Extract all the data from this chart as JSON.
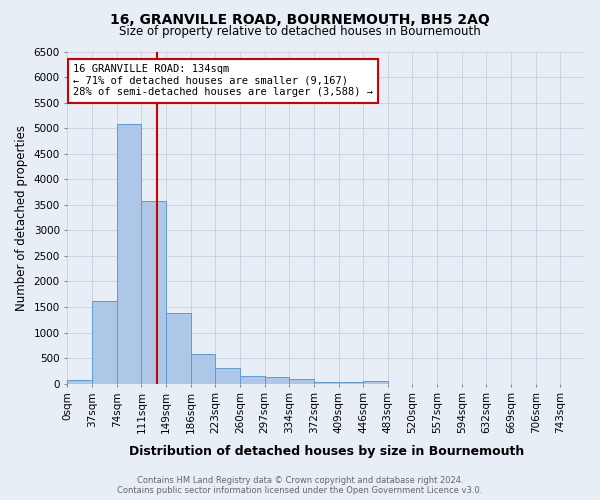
{
  "title": "16, GRANVILLE ROAD, BOURNEMOUTH, BH5 2AQ",
  "subtitle": "Size of property relative to detached houses in Bournemouth",
  "xlabel": "Distribution of detached houses by size in Bournemouth",
  "ylabel": "Number of detached properties",
  "footer_line1": "Contains HM Land Registry data © Crown copyright and database right 2024.",
  "footer_line2": "Contains public sector information licensed under the Open Government Licence v3.0.",
  "bin_labels": [
    "0sqm",
    "37sqm",
    "74sqm",
    "111sqm",
    "149sqm",
    "186sqm",
    "223sqm",
    "260sqm",
    "297sqm",
    "334sqm",
    "372sqm",
    "409sqm",
    "446sqm",
    "483sqm",
    "520sqm",
    "557sqm",
    "594sqm",
    "632sqm",
    "669sqm",
    "706sqm",
    "743sqm"
  ],
  "bar_values": [
    75,
    1620,
    5080,
    3570,
    1390,
    580,
    300,
    155,
    130,
    90,
    40,
    30,
    55,
    0,
    0,
    0,
    0,
    0,
    0,
    0
  ],
  "bar_color": "#aec6e8",
  "bar_edge_color": "#5b9bd5",
  "property_sqm": 134,
  "red_line_color": "#cc0000",
  "annotation_text": "16 GRANVILLE ROAD: 134sqm\n← 71% of detached houses are smaller (9,167)\n28% of semi-detached houses are larger (3,588) →",
  "annotation_box_color": "#ffffff",
  "annotation_box_edge_color": "#cc0000",
  "ylim": [
    0,
    6500
  ],
  "yticks": [
    0,
    500,
    1000,
    1500,
    2000,
    2500,
    3000,
    3500,
    4000,
    4500,
    5000,
    5500,
    6000,
    6500
  ],
  "grid_color": "#c8d0dc",
  "bg_color": "#e8eef5",
  "title_fontsize": 10,
  "subtitle_fontsize": 8.5,
  "tick_fontsize": 7.5,
  "ylabel_fontsize": 8.5,
  "xlabel_fontsize": 9,
  "footer_fontsize": 6.0,
  "footer_color": "#666666",
  "bin_width": 37,
  "n_bins": 20
}
